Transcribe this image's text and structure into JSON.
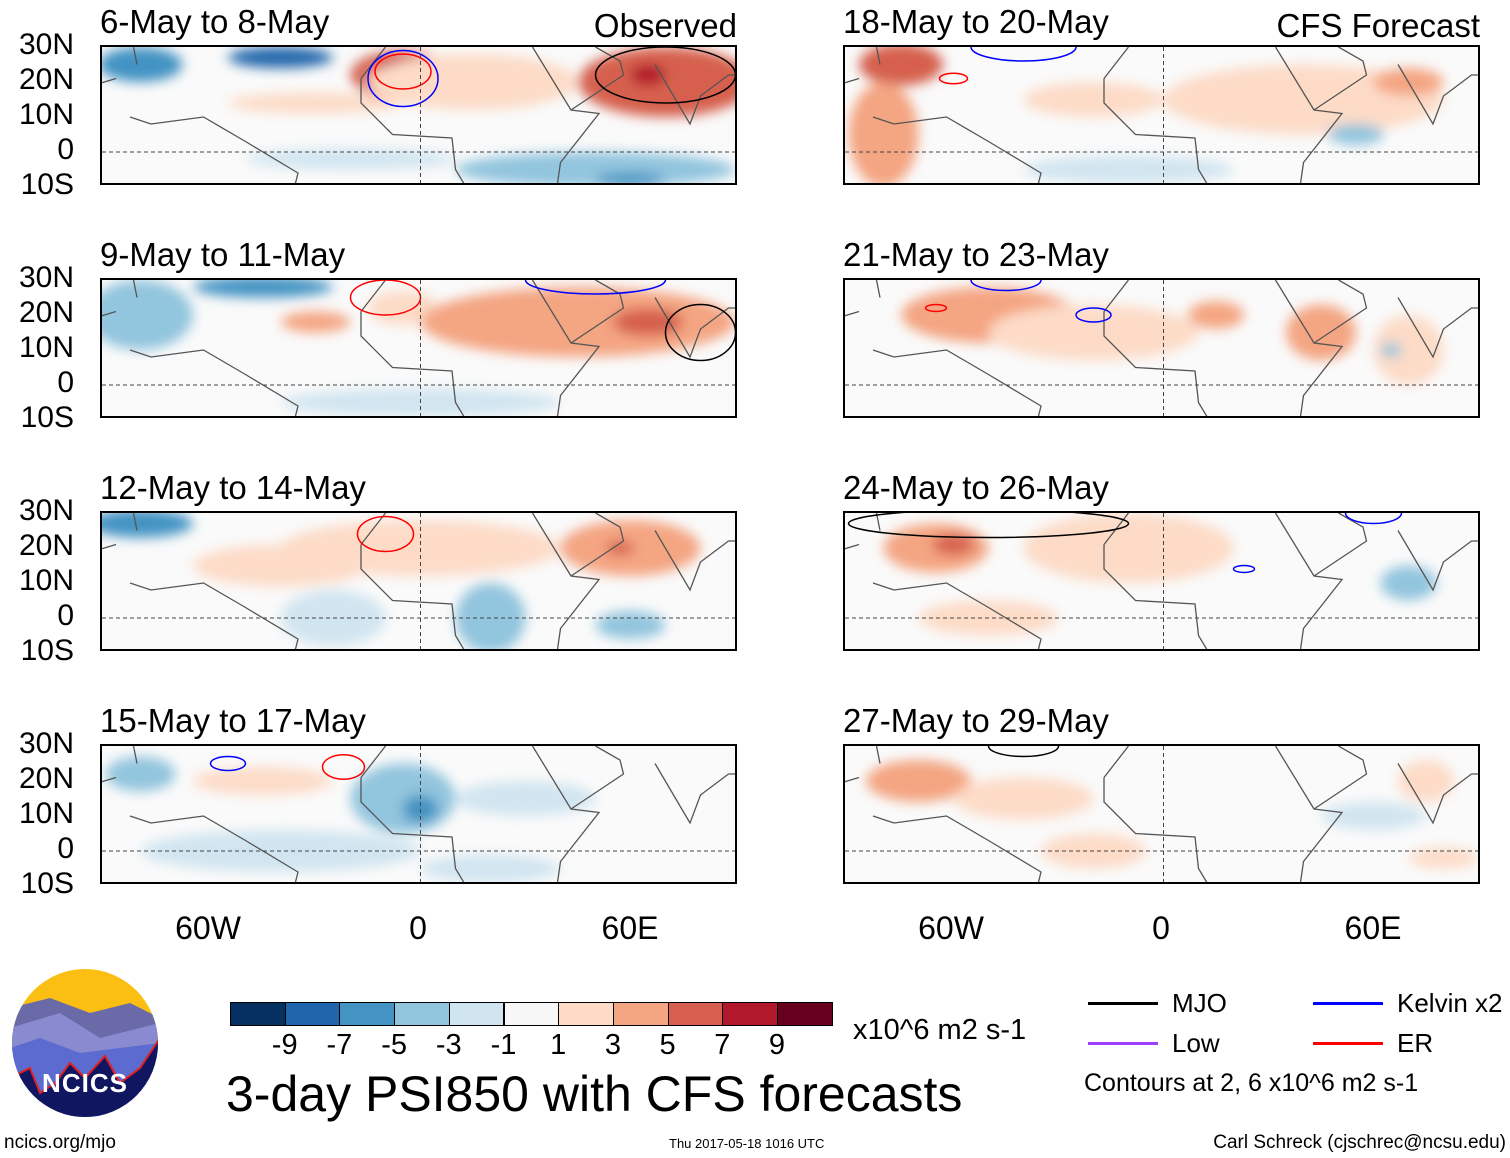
{
  "panels": [
    {
      "title": "6-May to 8-May",
      "tag": "Observed"
    },
    {
      "title": "18-May to 20-May",
      "tag": "CFS Forecast"
    },
    {
      "title": "9-May to 11-May"
    },
    {
      "title": "21-May to 23-May"
    },
    {
      "title": "12-May to 14-May"
    },
    {
      "title": "24-May to 26-May"
    },
    {
      "title": "15-May to 17-May"
    },
    {
      "title": "27-May to 29-May"
    }
  ],
  "lat_labels": [
    "30N",
    "20N",
    "10N",
    "0",
    "10S"
  ],
  "lon_labels": [
    "60W",
    "0",
    "60E"
  ],
  "colorbar": {
    "colors": [
      "#053061",
      "#2166ac",
      "#4393c3",
      "#92c5de",
      "#d1e5f0",
      "#f7f7f7",
      "#fddbc7",
      "#f4a582",
      "#d6604d",
      "#b2182b",
      "#67001f"
    ],
    "labels": [
      "-9",
      "-7",
      "-5",
      "-3",
      "-1",
      "1",
      "3",
      "5",
      "7",
      "9"
    ],
    "units": "x10^6 m2 s-1"
  },
  "title": "3-day PSI850 with CFS forecasts",
  "legend": {
    "items": [
      {
        "label": "MJO",
        "color": "#000000"
      },
      {
        "label": "Kelvin x2",
        "color": "#0000ff"
      },
      {
        "label": "Low",
        "color": "#a040ff"
      },
      {
        "label": "ER",
        "color": "#ff0000"
      }
    ],
    "contours": "Contours at 2, 6 x10^6 m2 s-1"
  },
  "logo": {
    "text": "NCICS"
  },
  "footer": {
    "left": "ncics.org/mjo",
    "center": "Thu 2017-05-18 1016 UTC",
    "right": "Carl Schreck (cjschrec@ncsu.edu)"
  }
}
